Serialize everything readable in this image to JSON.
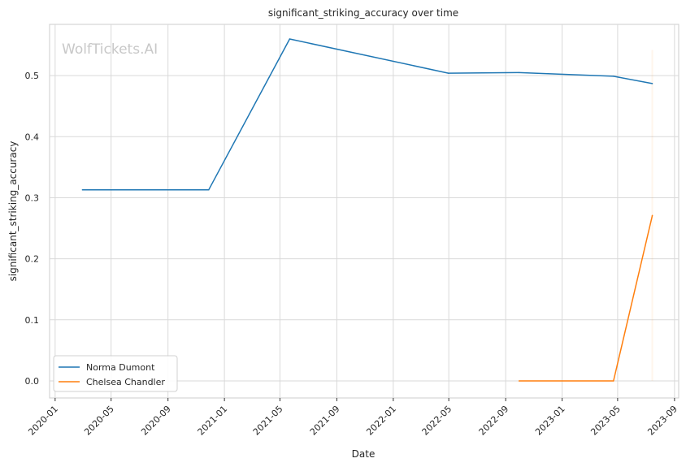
{
  "watermark": "WolfTickets.AI",
  "chart_data": {
    "type": "line",
    "title": "significant_striking_accuracy over time",
    "xlabel": "Date",
    "ylabel": "significant_striking_accuracy",
    "x_ticks": [
      "2020-01",
      "2020-05",
      "2020-09",
      "2021-01",
      "2021-05",
      "2021-09",
      "2022-01",
      "2022-05",
      "2022-09",
      "2023-01",
      "2023-05",
      "2023-09"
    ],
    "y_ticks": [
      "0.0",
      "0.1",
      "0.2",
      "0.3",
      "0.4",
      "0.5"
    ],
    "xlim": [
      "2019-12-20",
      "2023-09-10"
    ],
    "ylim": [
      -0.028,
      0.584
    ],
    "grid": true,
    "legend_position": "lower-left",
    "series": [
      {
        "name": "Norma Dumont",
        "color": "#1f77b4",
        "points": [
          {
            "x": "2020-02-29",
            "y": 0.313
          },
          {
            "x": "2020-11-28",
            "y": 0.313
          },
          {
            "x": "2021-05-22",
            "y": 0.56
          },
          {
            "x": "2022-04-30",
            "y": 0.504
          },
          {
            "x": "2022-09-30",
            "y": 0.505
          },
          {
            "x": "2023-04-22",
            "y": 0.499
          },
          {
            "x": "2023-07-15",
            "y": 0.487
          }
        ]
      },
      {
        "name": "Chelsea Chandler",
        "color": "#ff7f0e",
        "points": [
          {
            "x": "2022-09-30",
            "y": 0.0
          },
          {
            "x": "2023-04-22",
            "y": 0.0
          },
          {
            "x": "2023-07-15",
            "y": 0.271
          }
        ]
      }
    ]
  }
}
